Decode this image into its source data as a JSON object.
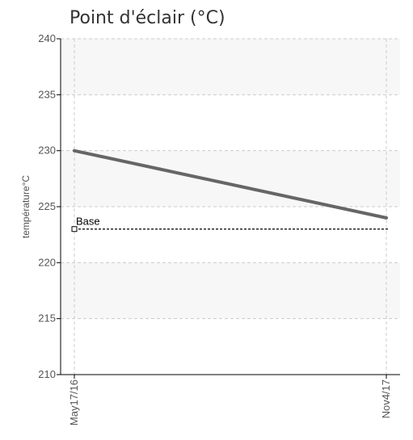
{
  "chart_data": {
    "type": "line",
    "title": "Point d'éclair (°C)",
    "xlabel": "",
    "ylabel": "température°C",
    "ylim": [
      210,
      240
    ],
    "yticks": [
      210,
      215,
      220,
      225,
      230,
      235,
      240
    ],
    "x": [
      "May17/16",
      "Nov4/17"
    ],
    "series": [
      {
        "values": [
          230,
          224
        ],
        "color": "#666666"
      }
    ],
    "reference_lines": [
      {
        "name": "Base",
        "value": 223,
        "color": "#000000",
        "style": "dashed"
      }
    ],
    "grid": true,
    "band_color": "#f7f7f7"
  }
}
